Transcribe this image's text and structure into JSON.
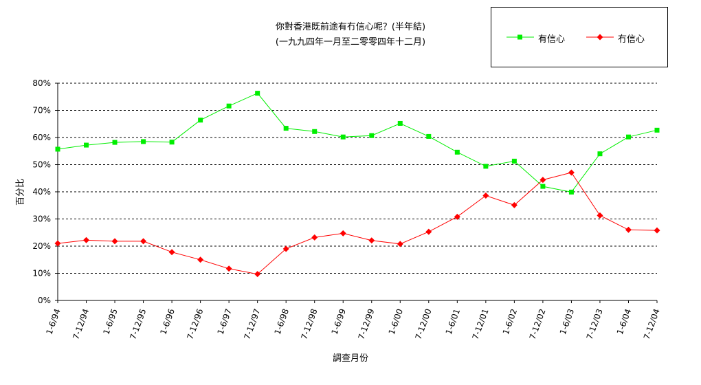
{
  "chart_data": {
    "type": "line",
    "title": "你對香港既前途有冇信心呢？(半年結)",
    "subtitle": "(一九九四年一月至二零零四年十二月)",
    "xlabel": "調查月份",
    "ylabel": "百分比",
    "ylim": [
      0,
      80
    ],
    "y_ticks": [
      "0%",
      "10%",
      "20%",
      "30%",
      "40%",
      "50%",
      "60%",
      "70%",
      "80%"
    ],
    "grid": "horizontal dashed",
    "legend_position": "top-right",
    "categories": [
      "1-6/94",
      "7-12/94",
      "1-6/95",
      "7-12/95",
      "1-6/96",
      "7-12/96",
      "1-6/97",
      "7-12/97",
      "1-6/98",
      "7-12/98",
      "1-6/99",
      "7-12/99",
      "1-6/00",
      "7-12/00",
      "1-6/01",
      "7-12/01",
      "1-6/02",
      "7-12/02",
      "1-6/03",
      "7-12/03",
      "1-6/04",
      "7-12/04"
    ],
    "series": [
      {
        "name": "有信心",
        "color": "#00ee00",
        "marker": "square",
        "values": [
          55.7,
          57.2,
          58.2,
          58.5,
          58.3,
          66.4,
          71.6,
          76.3,
          63.4,
          62.2,
          60.2,
          60.7,
          65.2,
          60.4,
          54.6,
          49.4,
          51.3,
          42.0,
          39.9,
          54.0,
          60.2,
          62.7
        ]
      },
      {
        "name": "冇信心",
        "color": "#ff0000",
        "marker": "diamond",
        "values": [
          21.0,
          22.2,
          21.8,
          21.8,
          17.8,
          15.0,
          11.7,
          9.7,
          19.0,
          23.2,
          24.7,
          22.1,
          20.8,
          25.3,
          30.8,
          38.6,
          35.1,
          44.4,
          47.1,
          31.3,
          26.0,
          25.8
        ]
      }
    ]
  }
}
